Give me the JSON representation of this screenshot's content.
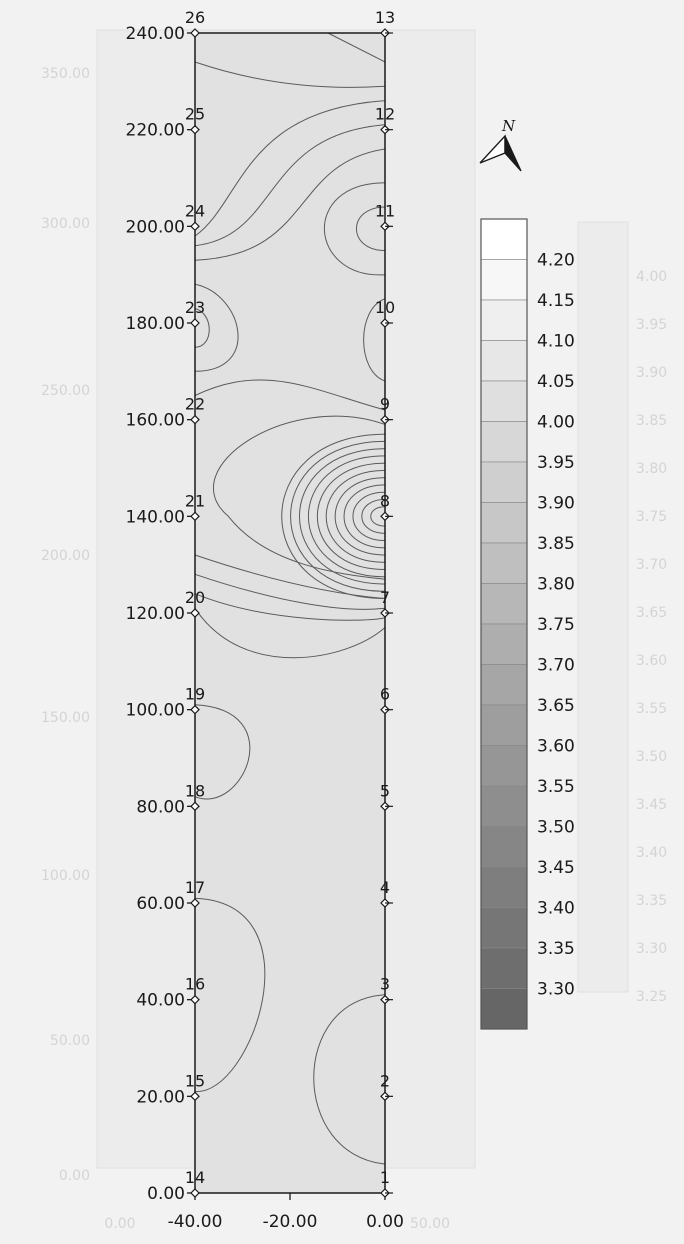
{
  "chart_data": {
    "type": "contour",
    "title": "",
    "xlabel": "",
    "ylabel": "",
    "xlim": [
      -40,
      0
    ],
    "ylim": [
      0,
      240
    ],
    "x_ticks": [
      "-40.00",
      "-20.00",
      "0.00"
    ],
    "y_ticks": [
      "0.00",
      "20.00",
      "40.00",
      "60.00",
      "80.00",
      "100.00",
      "120.00",
      "140.00",
      "160.00",
      "180.00",
      "200.00",
      "220.00",
      "240.00"
    ],
    "points": [
      {
        "label": "1",
        "x": 0,
        "y": 0
      },
      {
        "label": "2",
        "x": 0,
        "y": 20
      },
      {
        "label": "3",
        "x": 0,
        "y": 40
      },
      {
        "label": "4",
        "x": 0,
        "y": 60
      },
      {
        "label": "5",
        "x": 0,
        "y": 80
      },
      {
        "label": "6",
        "x": 0,
        "y": 100
      },
      {
        "label": "7",
        "x": 0,
        "y": 120
      },
      {
        "label": "8",
        "x": 0,
        "y": 140
      },
      {
        "label": "9",
        "x": 0,
        "y": 160
      },
      {
        "label": "10",
        "x": 0,
        "y": 180
      },
      {
        "label": "11",
        "x": 0,
        "y": 200
      },
      {
        "label": "12",
        "x": 0,
        "y": 220
      },
      {
        "label": "13",
        "x": 0,
        "y": 240
      },
      {
        "label": "14",
        "x": -40,
        "y": 0
      },
      {
        "label": "15",
        "x": -40,
        "y": 20
      },
      {
        "label": "16",
        "x": -40,
        "y": 40
      },
      {
        "label": "17",
        "x": -40,
        "y": 60
      },
      {
        "label": "18",
        "x": -40,
        "y": 80
      },
      {
        "label": "19",
        "x": -40,
        "y": 100
      },
      {
        "label": "20",
        "x": -40,
        "y": 120
      },
      {
        "label": "21",
        "x": -40,
        "y": 140
      },
      {
        "label": "22",
        "x": -40,
        "y": 160
      },
      {
        "label": "23",
        "x": -40,
        "y": 180
      },
      {
        "label": "24",
        "x": -40,
        "y": 200
      },
      {
        "label": "25",
        "x": -40,
        "y": 220
      },
      {
        "label": "26",
        "x": -40,
        "y": 240
      }
    ],
    "legend": {
      "levels": [
        "4.20",
        "4.15",
        "4.10",
        "4.05",
        "4.00",
        "3.95",
        "3.90",
        "3.85",
        "3.80",
        "3.75",
        "3.70",
        "3.65",
        "3.60",
        "3.55",
        "3.50",
        "3.45",
        "3.40",
        "3.35",
        "3.30"
      ],
      "min_color": "#666666",
      "max_color": "#ffffff"
    },
    "north_arrow": "N",
    "background_ghost": {
      "y_ticks": [
        "0.00",
        "50.00",
        "100.00",
        "150.00",
        "200.00",
        "250.00",
        "300.00",
        "350.00"
      ],
      "x_ticks": [
        "0.00",
        "50.00"
      ],
      "legend_levels": [
        "4.00",
        "3.95",
        "3.90",
        "3.85",
        "3.80",
        "3.75",
        "3.70",
        "3.65",
        "3.60",
        "3.55",
        "3.50",
        "3.45",
        "3.40",
        "3.35",
        "3.30",
        "3.25"
      ]
    }
  }
}
